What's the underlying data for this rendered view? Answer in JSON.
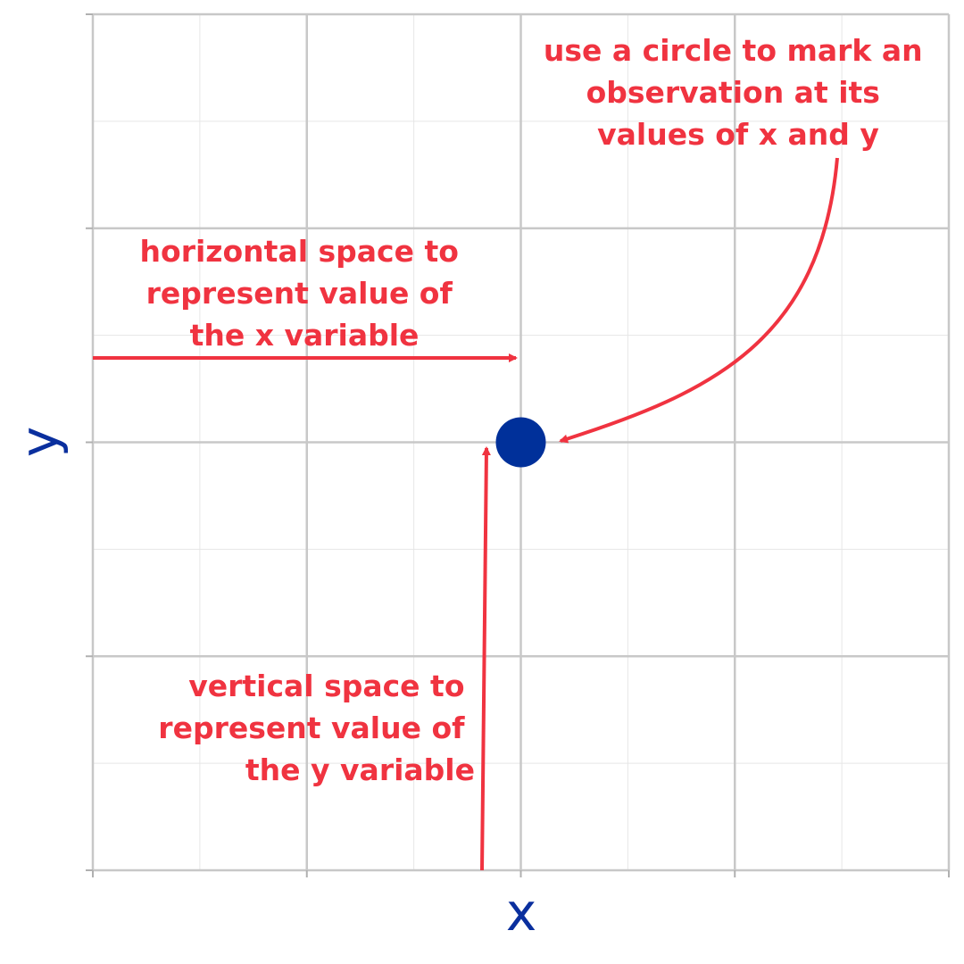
{
  "chart_data": {
    "type": "scatter",
    "title": "",
    "xlabel": "x",
    "ylabel": "y",
    "xlim": [
      0,
      4
    ],
    "ylim": [
      0,
      4
    ],
    "grid": true,
    "tick_labels": false,
    "points": [
      {
        "x": 2,
        "y": 2
      }
    ],
    "colors": {
      "point": "#00309a",
      "annotation": "#f03340",
      "axis_label": "#0a2f9e",
      "major_grid": "#c8c8c8",
      "minor_grid": "#e6e6e6"
    },
    "annotations": [
      {
        "id": "circle-note",
        "lines": [
          "use a circle to mark an",
          "observation at its",
          "values of x and y"
        ]
      },
      {
        "id": "horizontal-note",
        "lines": [
          "horizontal space to",
          "represent value of",
          "the x variable"
        ]
      },
      {
        "id": "vertical-note",
        "lines": [
          "vertical space to",
          "represent value of",
          "the y variable"
        ]
      }
    ]
  }
}
